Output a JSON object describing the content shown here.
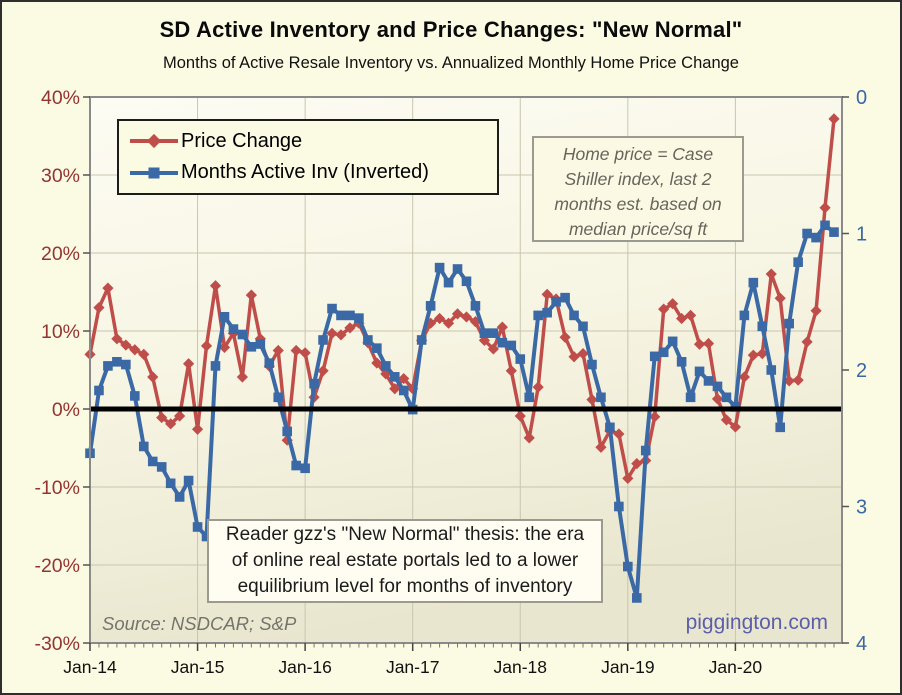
{
  "header": {
    "title": "SD Active Inventory and Price Changes: \"New Normal\"",
    "subtitle": "Months of Active Resale Inventory vs. Annualized Monthly Home Price Change"
  },
  "legend": {
    "items": [
      {
        "label": "Price Change",
        "color": "#bf4e4b",
        "marker": "diamond"
      },
      {
        "label": "Months Active Inv (Inverted)",
        "color": "#3b69a5",
        "marker": "square"
      }
    ]
  },
  "annotations": {
    "case_shiller": {
      "lines": [
        "Home price = Case",
        "Shiller index, last 2",
        "months est. based on",
        "median price/sq ft"
      ]
    },
    "new_normal": {
      "lines": [
        "Reader gzz's \"New Normal\" thesis: the era",
        "of online real estate portals led to a lower",
        "equilibrium level for months of inventory"
      ]
    },
    "source": "Source: NSDCAR; S&P",
    "site": "piggington.com"
  },
  "colors": {
    "background": "#fbfae2",
    "plot_gradient_top": "#fdfcf3",
    "plot_gradient_mid": "#f6f4e1",
    "plot_gradient_bottom": "#e9e6cf",
    "grid": "#c9c6ae",
    "axis": "#8a8a8a",
    "tick": "#555555",
    "price_line": "#bf4e4b",
    "inventory_line": "#3b69a5",
    "left_axis_text": "#943432",
    "right_axis_text": "#3a68a5",
    "x_axis_text": "#111111",
    "zero_line": "#000000"
  },
  "chart_data": {
    "type": "line",
    "title": "SD Active Inventory and Price Changes: \"New Normal\"",
    "subtitle": "Months of Active Resale Inventory vs. Annualized Monthly Home Price Change",
    "x": {
      "start": "Jan-2014",
      "end": "Dec-2020",
      "frequency": "monthly",
      "year_tick_labels": [
        "Jan-14",
        "Jan-15",
        "Jan-16",
        "Jan-17",
        "Jan-18",
        "Jan-19",
        "Jan-20"
      ],
      "minor_ticks_per_year": 12
    },
    "y_left": {
      "ticks": [
        40,
        30,
        20,
        10,
        0,
        -10,
        -20,
        -30
      ],
      "tick_suffix": "%",
      "range": [
        -30,
        40
      ],
      "grid": true
    },
    "y_right": {
      "ticks": [
        0,
        1,
        2,
        3,
        4
      ],
      "range": [
        0,
        4
      ],
      "inverted": true
    },
    "zero_line_value": 0,
    "series": [
      {
        "name": "Price Change",
        "axis": "left",
        "marker": "diamond",
        "color": "#bf4e4b",
        "values": [
          7.0,
          13.0,
          15.5,
          9.0,
          8.2,
          7.6,
          7.0,
          4.1,
          -1.1,
          -1.9,
          -0.9,
          5.8,
          -2.6,
          8.1,
          15.8,
          7.9,
          9.7,
          4.1,
          14.6,
          9.0,
          5.5,
          7.5,
          -4.0,
          7.5,
          7.2,
          1.5,
          4.9,
          9.7,
          9.5,
          10.4,
          11.0,
          8.5,
          5.9,
          4.5,
          2.6,
          3.9,
          2.6,
          8.8,
          11.0,
          11.6,
          11.0,
          12.2,
          11.8,
          11.2,
          8.8,
          7.7,
          10.5,
          4.9,
          -0.9,
          -3.7,
          2.8,
          14.7,
          14.1,
          9.2,
          6.7,
          7.1,
          1.2,
          -4.9,
          -2.8,
          -3.2,
          -8.9,
          -7.0,
          -6.6,
          -1.0,
          12.8,
          13.5,
          11.6,
          12.0,
          8.3,
          8.4,
          1.3,
          -1.4,
          -2.3,
          4.1,
          6.9,
          7.1,
          17.3,
          14.2,
          3.6,
          3.7,
          8.6,
          12.6,
          25.8,
          37.2
        ]
      },
      {
        "name": "Months Active Inv (Inverted)",
        "axis": "right",
        "marker": "square",
        "color": "#3b69a5",
        "values": [
          2.61,
          2.15,
          1.97,
          1.94,
          1.96,
          2.19,
          2.56,
          2.67,
          2.71,
          2.83,
          2.93,
          2.81,
          3.15,
          3.22,
          1.97,
          1.61,
          1.7,
          1.74,
          1.83,
          1.81,
          1.95,
          2.2,
          2.45,
          2.7,
          2.72,
          2.1,
          1.78,
          1.55,
          1.6,
          1.6,
          1.62,
          1.78,
          1.84,
          1.97,
          2.05,
          2.15,
          2.29,
          1.78,
          1.53,
          1.25,
          1.36,
          1.26,
          1.35,
          1.53,
          1.73,
          1.73,
          1.8,
          1.82,
          1.92,
          2.2,
          1.6,
          1.58,
          1.5,
          1.47,
          1.6,
          1.68,
          1.96,
          2.2,
          2.42,
          3.0,
          3.44,
          3.67,
          2.59,
          1.9,
          1.87,
          1.79,
          1.94,
          2.2,
          2.01,
          2.08,
          2.12,
          2.2,
          2.27,
          1.6,
          1.36,
          1.68,
          2.0,
          2.42,
          1.66,
          1.21,
          1.0,
          1.03,
          0.94,
          0.99
        ]
      }
    ]
  }
}
